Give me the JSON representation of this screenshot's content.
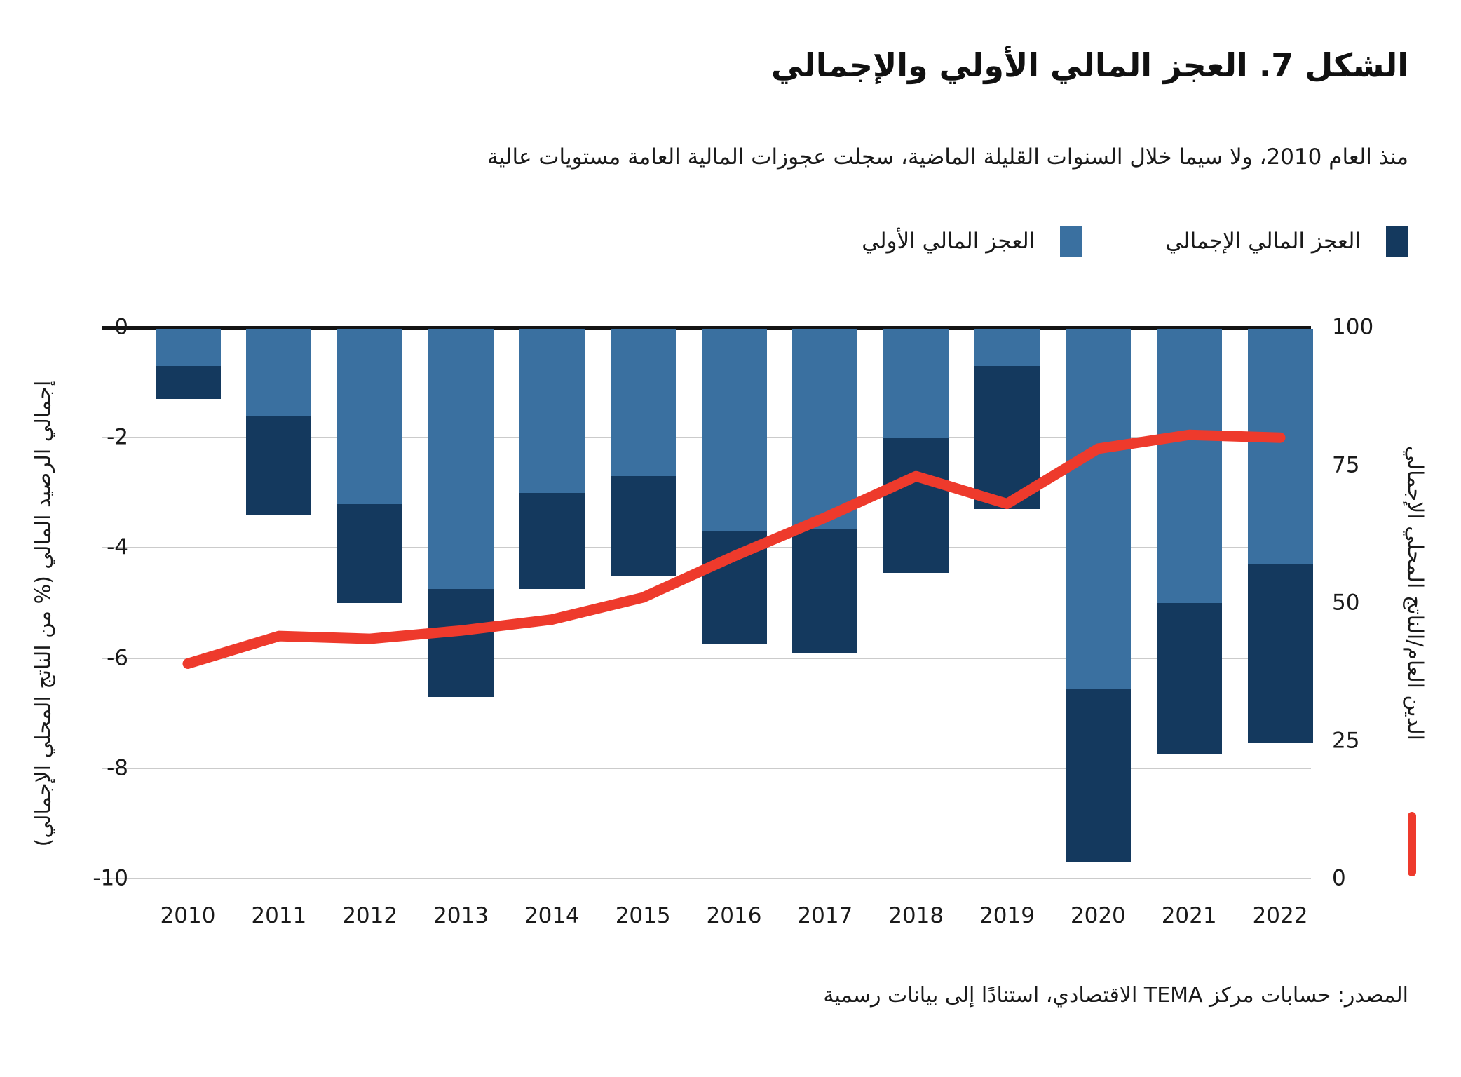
{
  "title": "الشكل 7. العجز المالي الأولي والإجمالي",
  "subtitle": "منذ العام 2010، ولا سيما خلال السنوات القليلة الماضية، سجلت عجوزات المالية العامة مستويات عالية",
  "source_note": "المصدر: حسابات مركز TEMA الاقتصادي، استنادًا إلى بيانات رسمية",
  "colors": {
    "primary_bar": "#3A70A0",
    "overall_bar": "#14395E",
    "debt_line": "#EE3A2C",
    "gridline": "#CBCBCB",
    "zero_line": "#141414",
    "text": "#1A1A1A"
  },
  "chart_data": {
    "type": "bar",
    "subtype": "stacked-bars-with-line-overlay",
    "categories": [
      "2010",
      "2011",
      "2012",
      "2013",
      "2014",
      "2015",
      "2016",
      "2017",
      "2018",
      "2019",
      "2020",
      "2021",
      "2022"
    ],
    "series": [
      {
        "name": "العجز المالي الأولي",
        "type": "bar",
        "role": "primary-deficit",
        "axis": "left",
        "values": [
          -0.7,
          -1.6,
          -3.2,
          -4.75,
          -3.0,
          -2.7,
          -3.7,
          -3.65,
          -2.0,
          -0.7,
          -6.55,
          -5.0,
          -4.3
        ]
      },
      {
        "name": "العجز المالي الإجمالي",
        "type": "bar",
        "role": "overall-deficit",
        "axis": "left",
        "values": [
          -1.3,
          -3.4,
          -5.0,
          -6.7,
          -4.75,
          -4.5,
          -5.75,
          -5.9,
          -4.45,
          -3.3,
          -9.7,
          -7.75,
          -7.55
        ]
      },
      {
        "name": "الدين العام/الناتج المحلي الإجمالي",
        "type": "line",
        "role": "debt-to-gdp",
        "axis": "right",
        "values": [
          39,
          44,
          43.5,
          45,
          47,
          51,
          58.5,
          65.5,
          73,
          68,
          78,
          80.5,
          80
        ]
      }
    ],
    "stacking_note": "light segment drawn from 0 to primary value; dark segment continues from primary value down to overall value",
    "left_axis": {
      "label": "إجمالي الرصيد المالي (% من الناتج المحلي الإجمالي)",
      "ticks": [
        0,
        -2,
        -4,
        -6,
        -8,
        -10
      ],
      "range": [
        0,
        -10
      ]
    },
    "right_axis": {
      "label": "الدين العام/الناتج المحلي الإجمالي",
      "ticks": [
        100,
        75,
        50,
        25,
        0
      ],
      "range": [
        0,
        100
      ]
    },
    "grid": true,
    "legend_position": "top-right"
  }
}
